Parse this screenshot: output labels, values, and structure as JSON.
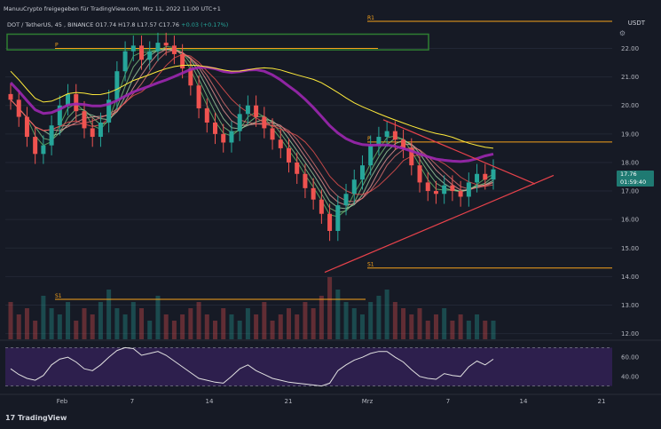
{
  "header": {
    "title": "ManuuCrypto freigegeben für TradingView.com, Mrz 11, 2022 11:00 UTC+1",
    "symbol": "DOT / TetherUS, 45",
    "ohlc": "O17.74  H17.8  L17.57  C17.76",
    "change": "+0.03 (+0.17%)",
    "currency": "USDT"
  },
  "price_tag": {
    "value": "17.76",
    "countdown": "01:59:40"
  },
  "footer": {
    "brand": "TradingView"
  },
  "colors": {
    "background": "#161a25",
    "up_candle": "#26a69a",
    "down_candle": "#ef5350",
    "ma_long": "#9c27b0",
    "ma_yellow": "#ffeb3b",
    "pivot_level": "#f7a21b",
    "triangle": "#e8424b",
    "zone": "#2e7d32",
    "rsi_line": "#e0e0e0",
    "rsi_band": "#2d1f4d"
  },
  "chart_data": [
    {
      "type": "candlestick",
      "y_ticks": [
        "22.00",
        "21.00",
        "20.00",
        "19.00",
        "18.00",
        "17.00",
        "16.00",
        "15.00",
        "14.00",
        "13.00",
        "12.00"
      ],
      "ylim": [
        11.8,
        23.2
      ],
      "x_ticks": [
        "Feb",
        "7",
        "14",
        "21",
        "Mrz",
        "7",
        "14",
        "21"
      ],
      "last_price": 17.76,
      "level_labels": {
        "R1": {
          "label": "R1",
          "value": 22.95
        },
        "P": {
          "label": "P",
          "value": 22.0
        },
        "P2": {
          "label": "P",
          "value": 18.72
        },
        "S1": {
          "label": "S1",
          "value": 14.3
        },
        "S1b": {
          "label": "S1",
          "value": 13.2
        }
      },
      "close_path": [
        20.2,
        19.6,
        18.9,
        18.3,
        18.6,
        19.3,
        20.0,
        20.4,
        19.8,
        19.2,
        18.9,
        19.4,
        20.2,
        21.2,
        21.9,
        22.1,
        21.6,
        21.9,
        22.2,
        22.1,
        21.8,
        21.3,
        20.7,
        19.9,
        19.4,
        19.0,
        18.7,
        19.1,
        19.7,
        20.0,
        19.6,
        19.2,
        18.8,
        18.5,
        18.0,
        17.6,
        17.1,
        16.7,
        16.2,
        15.6,
        16.5,
        16.9,
        17.4,
        17.9,
        18.6,
        18.9,
        19.1,
        18.8,
        18.5,
        17.9,
        17.3,
        17.0,
        16.9,
        17.2,
        17.0,
        16.8,
        17.3,
        17.6,
        17.4,
        17.76
      ],
      "volume": [
        0.6,
        0.4,
        0.5,
        0.3,
        0.7,
        0.5,
        0.4,
        0.6,
        0.3,
        0.5,
        0.4,
        0.6,
        0.8,
        0.5,
        0.4,
        0.6,
        0.5,
        0.3,
        0.7,
        0.4,
        0.3,
        0.4,
        0.5,
        0.6,
        0.4,
        0.3,
        0.5,
        0.4,
        0.3,
        0.5,
        0.4,
        0.6,
        0.3,
        0.4,
        0.5,
        0.4,
        0.6,
        0.5,
        0.7,
        1.0,
        0.8,
        0.6,
        0.5,
        0.4,
        0.6,
        0.7,
        0.8,
        0.6,
        0.5,
        0.4,
        0.5,
        0.3,
        0.4,
        0.5,
        0.3,
        0.4,
        0.3,
        0.4,
        0.3,
        0.3
      ],
      "rsi": {
        "y_ticks": [
          "60.00",
          "40.00"
        ],
        "ylim": [
          25,
          75
        ],
        "values": [
          48,
          42,
          38,
          36,
          41,
          52,
          58,
          60,
          55,
          48,
          46,
          52,
          60,
          67,
          70,
          69,
          62,
          64,
          66,
          62,
          56,
          50,
          44,
          38,
          36,
          34,
          33,
          40,
          48,
          52,
          46,
          42,
          38,
          36,
          34,
          33,
          32,
          31,
          30,
          33,
          46,
          52,
          57,
          60,
          64,
          66,
          66,
          60,
          55,
          47,
          40,
          38,
          37,
          43,
          41,
          40,
          50,
          56,
          52,
          58
        ]
      }
    }
  ]
}
